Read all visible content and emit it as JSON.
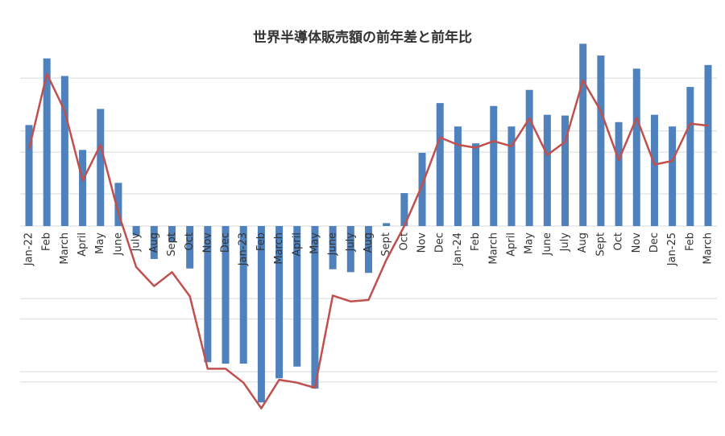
{
  "chart_data": {
    "type": "bar_line",
    "title": "世界半導体販売額の前年差と前年比",
    "categories": [
      "Jan-22",
      "Feb",
      "March",
      "April",
      "May",
      "June",
      "July",
      "Aug",
      "Sept",
      "Oct",
      "Nov",
      "Dec",
      "Jan-23",
      "Feb",
      "March",
      "April",
      "May",
      "June",
      "July",
      "Aug",
      "Sept",
      "Oct",
      "Nov",
      "Dec",
      "Jan-24",
      "Feb",
      "March",
      "April",
      "May",
      "June",
      "July",
      "Aug",
      "Sept",
      "Oct",
      "Nov",
      "Dec",
      "Jan-25",
      "Feb",
      "March"
    ],
    "series": [
      {
        "kind": "bar",
        "color": "#4f81bd",
        "values": [
          13.8,
          22.9,
          20.5,
          10.4,
          16.0,
          5.9,
          -1.3,
          -4.5,
          -2.1,
          -5.8,
          -18.6,
          -18.8,
          -18.8,
          -24.1,
          -20.8,
          -19.2,
          -22.2,
          -5.9,
          -6.3,
          -6.4,
          0.4,
          4.5,
          10.0,
          16.8,
          13.6,
          11.3,
          16.4,
          13.6,
          18.6,
          15.2,
          15.1,
          24.9,
          23.3,
          14.2,
          21.5,
          15.2,
          13.6,
          19.0,
          22.0
        ]
      },
      {
        "kind": "line",
        "color": "#c0504d",
        "values": [
          10.5,
          20.8,
          15.7,
          6.2,
          11.1,
          1.8,
          -5.6,
          -8.2,
          -6.3,
          -9.6,
          -19.5,
          -19.5,
          -21.4,
          -24.9,
          -21.0,
          -21.4,
          -22.1,
          -9.5,
          -10.3,
          -10.1,
          -4.6,
          0,
          5.6,
          12.1,
          11.1,
          10.7,
          11.6,
          10.9,
          14.7,
          9.7,
          11.5,
          19.9,
          15.7,
          9.0,
          14.8,
          8.4,
          8.9,
          14.0,
          13.7
        ]
      }
    ],
    "ylim": [
      -25,
      25
    ],
    "gridlines": [
      20.2,
      13,
      10.1,
      4.4,
      -9.9,
      -12.7,
      -19.9,
      -21.3
    ],
    "grid": true
  }
}
